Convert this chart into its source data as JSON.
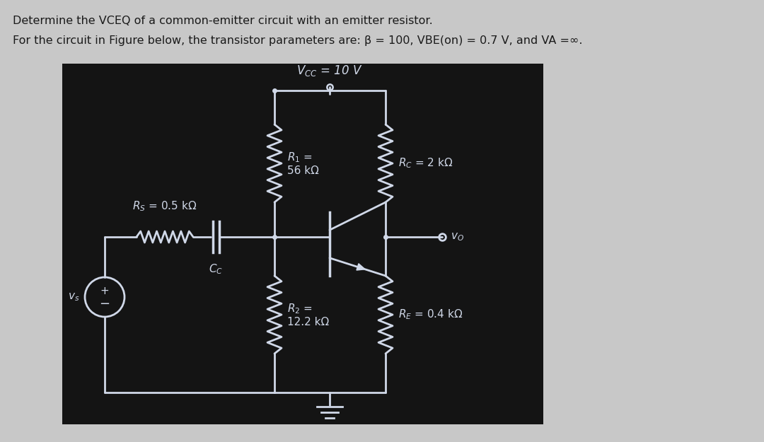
{
  "title_line1": "Determine the VCEQ of a common-emitter circuit with an emitter resistor.",
  "title_line2": "For the circuit in Figure below, the transistor parameters are: β = 100, VBE(on) = 0.7 V, and VA =∞.",
  "bg_outer": "#c8c8c8",
  "bg_circuit": "#141414",
  "wire_color": "#d0d8e8",
  "text_color_outer": "#1a1a1a",
  "vcc_label": "$V_{CC}$ = 10 V",
  "r1_label": "$R_1$ =\n56 kΩ",
  "r2_label": "$R_2$ =\n12.2 kΩ",
  "rc_label": "$R_C$ = 2 kΩ",
  "re_label": "$R_E$ = 0.4 kΩ",
  "rs_label": "$R_S$ = 0.5 kΩ",
  "cc_label": "$C_C$",
  "vs_label": "$v_s$",
  "vo_label": "$v_O$",
  "font_title": 11.5,
  "font_circuit": 11
}
